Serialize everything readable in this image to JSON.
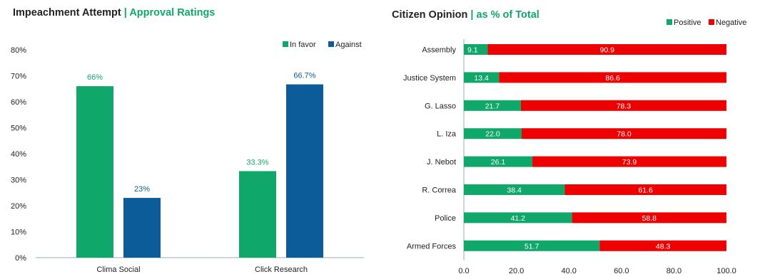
{
  "colors": {
    "green": "#10a86a",
    "blue": "#0d5c9a",
    "red": "#ee0000"
  },
  "left": {
    "title_main": "Impeachment Attempt",
    "title_sep": "|",
    "title_sub": "Approval Ratings"
  },
  "right": {
    "title_main": "Citizen Opinion",
    "title_sep": "|",
    "title_sub": "as % of Total"
  },
  "chart_data": [
    {
      "type": "bar",
      "title": "Impeachment Attempt | Approval Ratings",
      "categories": [
        "Clima Social",
        "Click Research"
      ],
      "series": [
        {
          "name": "In favor",
          "values": [
            66,
            33.3
          ],
          "labels": [
            "66%",
            "33.3%"
          ],
          "color": "#10a86a"
        },
        {
          "name": "Against",
          "values": [
            23,
            66.7
          ],
          "labels": [
            "23%",
            "66.7%"
          ],
          "color": "#0d5c9a"
        }
      ],
      "yticks": [
        "0%",
        "10%",
        "20%",
        "30%",
        "40%",
        "50%",
        "60%",
        "70%",
        "80%"
      ],
      "ylim": [
        0,
        80
      ],
      "grid": false,
      "legend": "top-right"
    },
    {
      "type": "bar",
      "orientation": "horizontal",
      "stacked": true,
      "title": "Citizen Opinion | as % of Total",
      "categories": [
        "Assembly",
        "Justice System",
        "G. Lasso",
        "L. Iza",
        "J. Nebot",
        "R. Correa",
        "Police",
        "Armed Forces"
      ],
      "series": [
        {
          "name": "Positive",
          "values": [
            9.1,
            13.4,
            21.7,
            22.0,
            26.1,
            38.4,
            41.2,
            51.7
          ],
          "color": "#10a86a"
        },
        {
          "name": "Negative",
          "values": [
            90.9,
            86.6,
            78.3,
            78.0,
            73.9,
            61.6,
            58.8,
            48.3
          ],
          "color": "#ee0000"
        }
      ],
      "xticks": [
        "0.0",
        "20.0",
        "40.0",
        "60.0",
        "80.0",
        "100.0"
      ],
      "xlim": [
        0,
        100
      ],
      "grid": false,
      "legend": "top-right"
    }
  ]
}
